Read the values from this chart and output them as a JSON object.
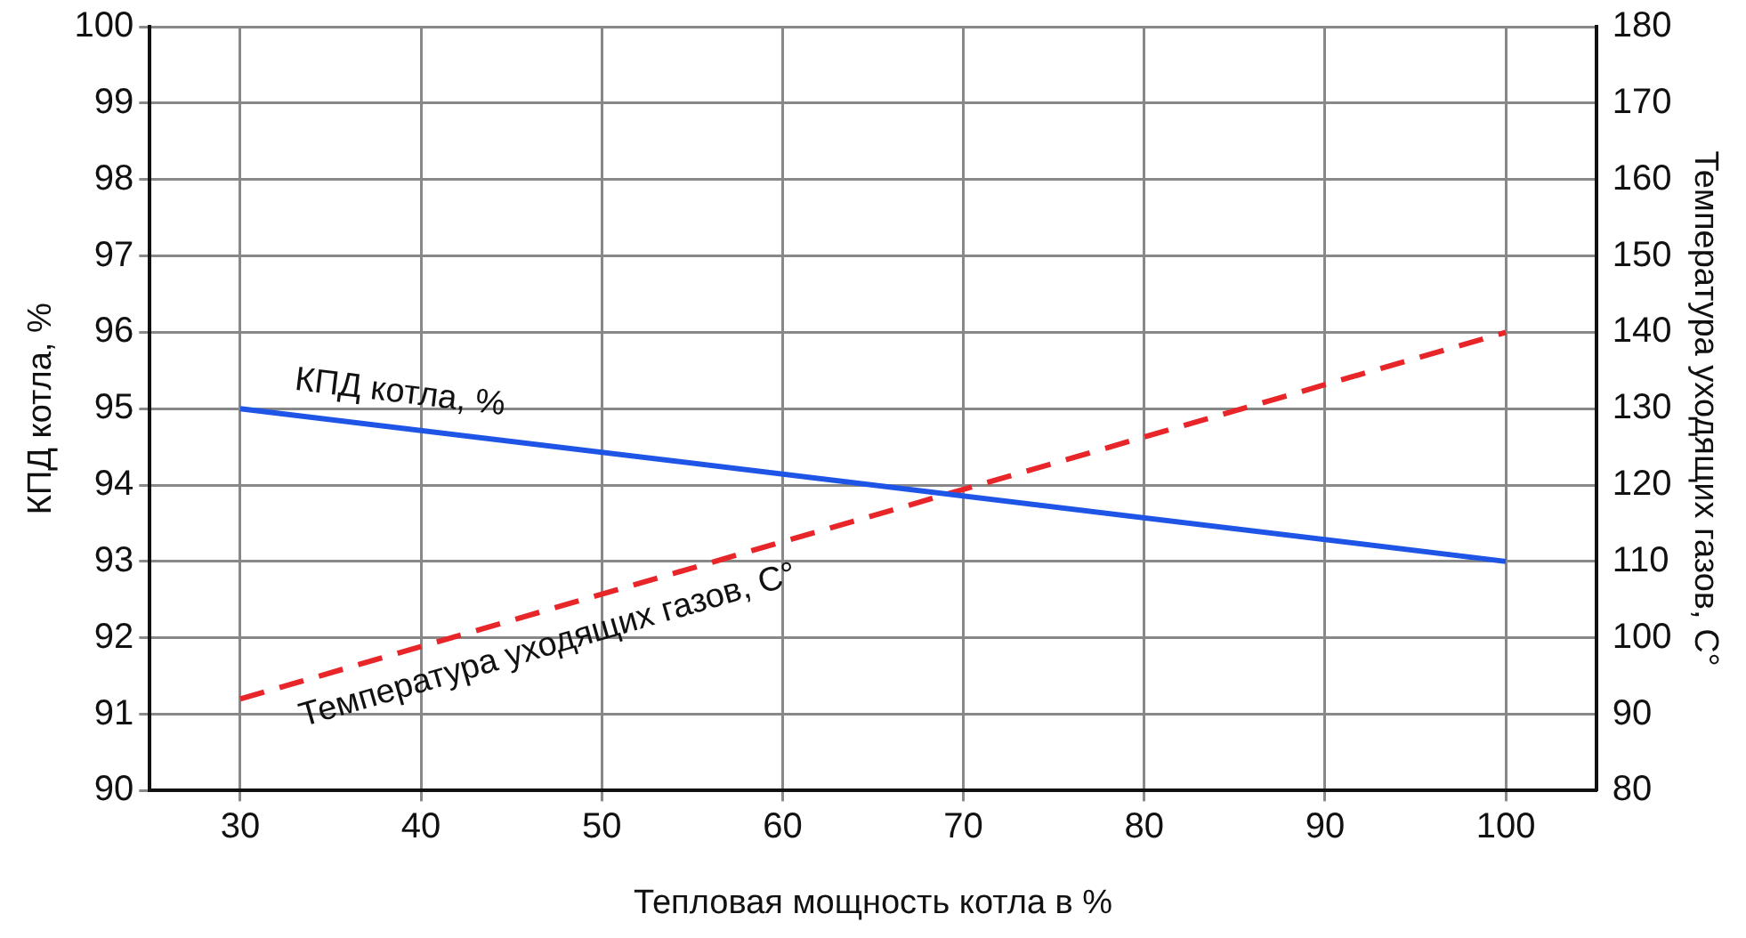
{
  "chart_data": {
    "type": "line",
    "xlabel": "Тепловая мощность котла в %",
    "ylabel": "КПД котла, %",
    "y2label": "Температура уходящих газов, C°",
    "x": [
      30,
      100
    ],
    "series": [
      {
        "name": "КПД котла, %",
        "color": "#1f55e6",
        "values": [
          95,
          93
        ],
        "line_style": "solid"
      },
      {
        "name": "Температура уходящих газов, C°",
        "color": "#e8262a",
        "values": [
          92,
          140
        ],
        "axis": "y2",
        "line_style": "dashed"
      }
    ],
    "xlim": [
      25,
      105
    ],
    "xticks": [
      30,
      40,
      50,
      60,
      70,
      80,
      90,
      100
    ],
    "ylim": [
      90,
      100
    ],
    "yticks": [
      90,
      91,
      92,
      93,
      94,
      95,
      96,
      97,
      98,
      99,
      100
    ],
    "y2lim": [
      80,
      180
    ],
    "y2ticks": [
      80,
      90,
      100,
      110,
      120,
      130,
      140,
      150,
      160,
      170,
      180
    ],
    "grid": true,
    "legend": false,
    "marker": "none"
  }
}
